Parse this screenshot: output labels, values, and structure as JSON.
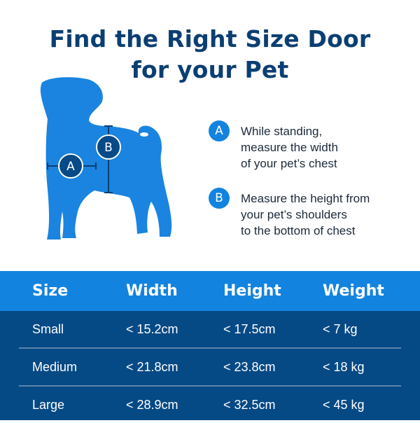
{
  "title_line1": "Find the Right Size Door",
  "title_line2": "for your Pet",
  "colors": {
    "navy": "#0b3f73",
    "blue": "#1383e0",
    "dark": "#064a85"
  },
  "diagram": {
    "label_a": "A",
    "label_b": "B",
    "icon": "dog-silhouette-icon"
  },
  "steps": [
    {
      "badge": "A",
      "text": "While standing,\nmeasure the width\nof your pet’s chest"
    },
    {
      "badge": "B",
      "text": "Measure the height from\nyour pet’s shoulders\nto the bottom of chest"
    }
  ],
  "table": {
    "headers": [
      "Size",
      "Width",
      "Height",
      "Weight"
    ],
    "rows": [
      [
        "Small",
        "< 15.2cm",
        "< 17.5cm",
        "< 7 kg"
      ],
      [
        "Medium",
        "< 21.8cm",
        "< 23.8cm",
        "< 18 kg"
      ],
      [
        "Large",
        "< 28.9cm",
        "< 32.5cm",
        "< 45 kg"
      ]
    ]
  }
}
